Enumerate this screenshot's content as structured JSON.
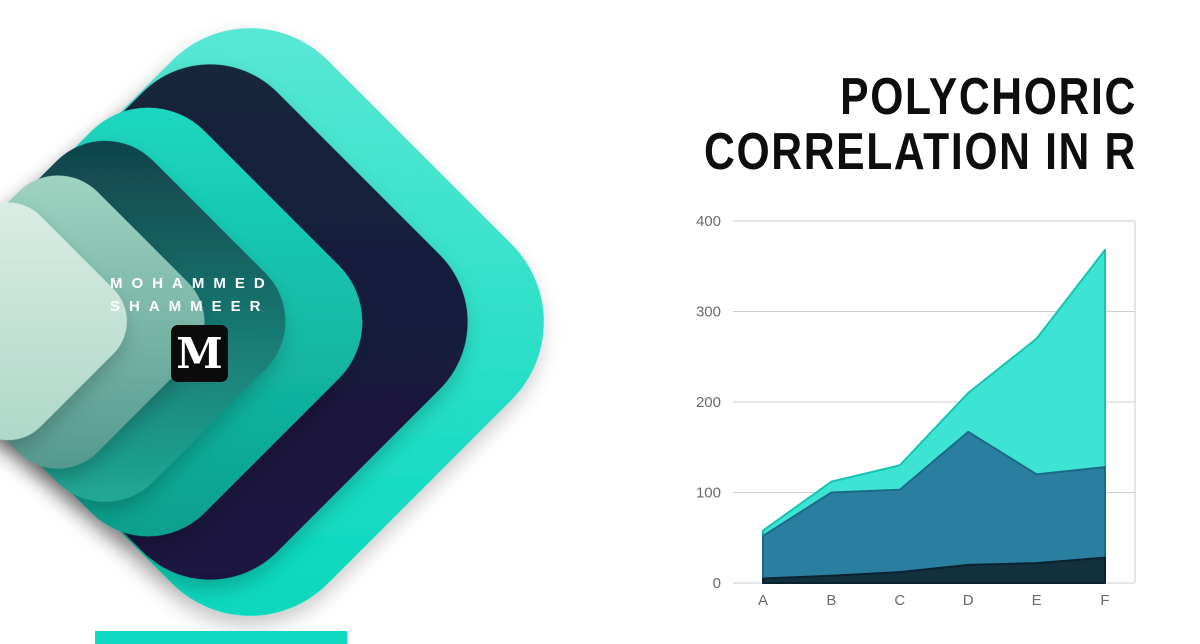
{
  "brand": {
    "author_line1": "MOHAMMED",
    "author_line2": "SHAMMEER",
    "logo_letter": "M",
    "colors": {
      "turquoise": "#00d7bb",
      "navy": "#1c1040",
      "teal": "#0a9b89",
      "mint": "#d9eee5",
      "logo_bg": "#0b0b0b"
    }
  },
  "title": {
    "line1": "POLYCHORIC",
    "line2": "CORRELATION IN R"
  },
  "chart_data": {
    "type": "area",
    "title": "",
    "xlabel": "",
    "ylabel": "",
    "categories": [
      "A",
      "B",
      "C",
      "D",
      "E",
      "F"
    ],
    "series": [
      {
        "name": "series-1",
        "color": "#3de4d3",
        "stroke": "#15c4b1",
        "values": [
          58,
          112,
          130,
          210,
          270,
          368
        ]
      },
      {
        "name": "series-2",
        "color": "#2a7fa0",
        "stroke": "#1c6a88",
        "values": [
          52,
          100,
          103,
          167,
          120,
          128
        ]
      },
      {
        "name": "series-3",
        "color": "#12303e",
        "stroke": "#0b2230",
        "values": [
          5,
          8,
          12,
          20,
          22,
          28
        ]
      }
    ],
    "ylim": [
      0,
      400
    ],
    "yticks": [
      0,
      100,
      200,
      300,
      400
    ],
    "grid": true,
    "grid_color": "#cfcfcf",
    "tick_color": "#6a6a6a",
    "legend": "none"
  }
}
